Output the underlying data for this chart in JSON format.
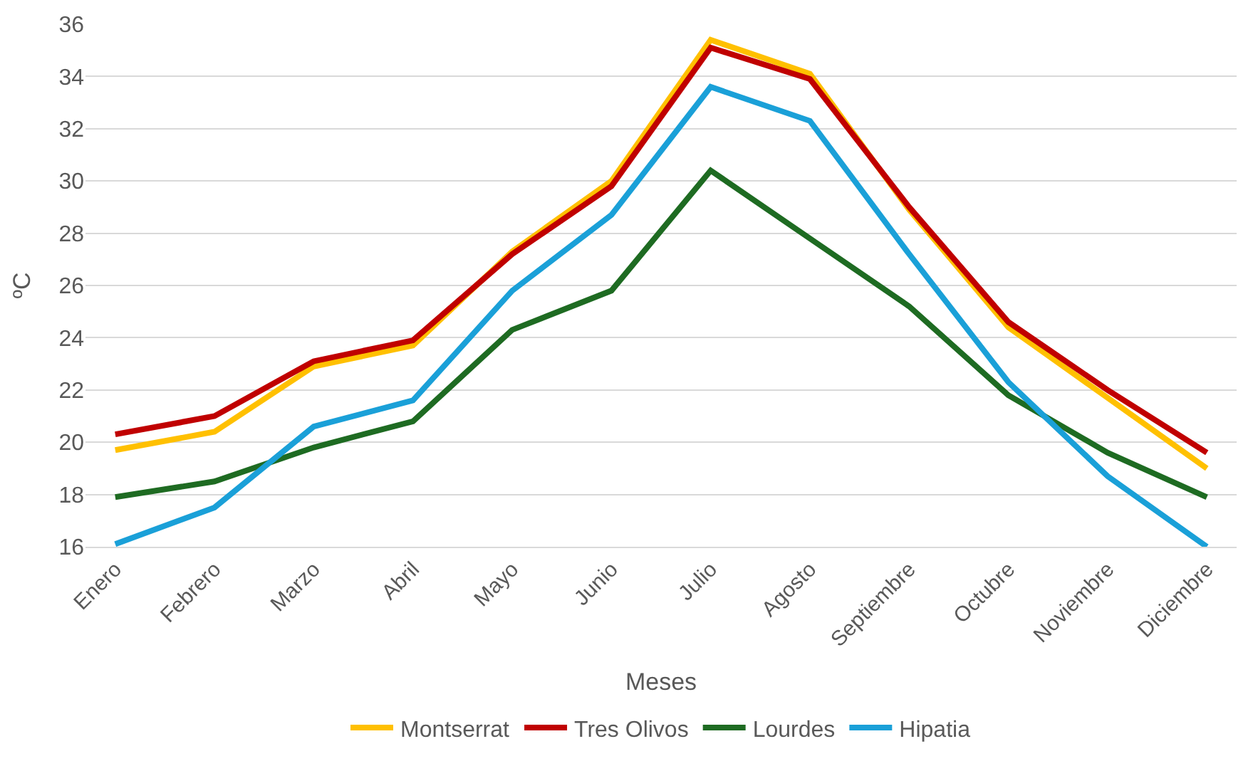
{
  "chart_data": {
    "type": "line",
    "xlabel": "Meses",
    "ylabel": "ºC",
    "categories": [
      "Enero",
      "Febrero",
      "Marzo",
      "Abril",
      "Mayo",
      "Junio",
      "Julio",
      "Agosto",
      "Septiembre",
      "Octubre",
      "Noviembre",
      "Diciembre"
    ],
    "series": [
      {
        "name": "Montserrat",
        "color": "#ffc000",
        "values": [
          19.7,
          20.4,
          22.9,
          23.7,
          27.3,
          30.0,
          35.4,
          34.1,
          28.9,
          24.4,
          21.7,
          19.0
        ]
      },
      {
        "name": "Tres Olivos",
        "color": "#c00000",
        "values": [
          20.3,
          21.0,
          23.1,
          23.9,
          27.2,
          29.8,
          35.1,
          33.9,
          29.0,
          24.6,
          22.0,
          19.6
        ]
      },
      {
        "name": "Lourdes",
        "color": "#1e6b22",
        "values": [
          17.9,
          18.5,
          19.8,
          20.8,
          24.3,
          25.8,
          30.4,
          27.8,
          25.2,
          21.8,
          19.6,
          17.9
        ]
      },
      {
        "name": "Hipatia",
        "color": "#1aa0d8",
        "values": [
          16.1,
          17.5,
          20.6,
          21.6,
          25.8,
          28.7,
          33.6,
          32.3,
          27.2,
          22.3,
          18.7,
          16.0
        ]
      }
    ],
    "ylim": [
      16,
      36
    ],
    "yticks": [
      16,
      18,
      20,
      22,
      24,
      26,
      28,
      30,
      32,
      34,
      36
    ],
    "grid": "y",
    "legend": "bottom",
    "marker": "none",
    "line_style": "solid"
  }
}
